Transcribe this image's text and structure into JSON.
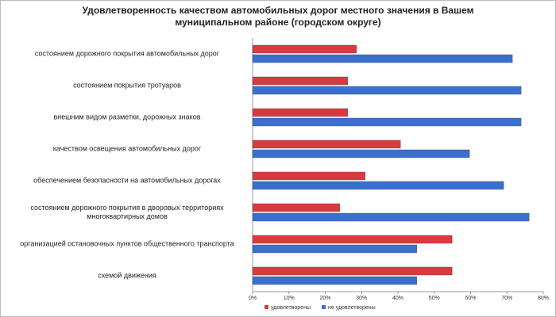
{
  "chart_data": {
    "type": "hbar",
    "title": "Удовлетворенность качеством автомобильных дорог местного значения в Вашем муниципальном районе (городском округе)",
    "categories": [
      "состоянием дорожного покрытия автомобильных дорог",
      "состоянием покрытия тротуаров",
      "внешним видом разметки, дорожных знаков",
      "качеством освещения автомобильных дорог",
      "обеспечением безопасности на автомобильных дорогах",
      "состоянием дорожного покрытия в дворовых территориях многоквартирных домов",
      "организацией остановочных пунктов общественного транспорта",
      "схемой движения"
    ],
    "series": [
      {
        "name": "удовлетворены",
        "color": "#d93a3f",
        "values": [
          28.6,
          26.2,
          26.2,
          40.7,
          31.0,
          24.0,
          54.9,
          54.9
        ]
      },
      {
        "name": "не удовлетворены",
        "color": "#3a6fd0",
        "values": [
          71.5,
          73.9,
          73.9,
          59.7,
          69.1,
          76.1,
          45.2,
          45.2
        ]
      }
    ],
    "xlim": [
      0,
      80
    ],
    "xticks": [
      {
        "value": 0,
        "label": "0%"
      },
      {
        "value": 10,
        "label": "10%"
      },
      {
        "value": 20,
        "label": "20%"
      },
      {
        "value": 30,
        "label": "30%"
      },
      {
        "value": 40,
        "label": "40%"
      },
      {
        "value": 50,
        "label": "50%"
      },
      {
        "value": 60,
        "label": "60%"
      },
      {
        "value": 70,
        "label": "70%"
      },
      {
        "value": 80,
        "label": "80%"
      }
    ],
    "grid": false,
    "legend": "bottom"
  }
}
